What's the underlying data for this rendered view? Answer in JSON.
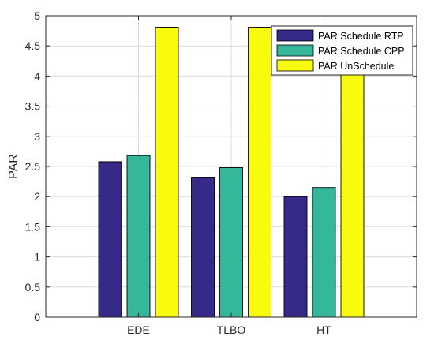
{
  "chart_data": {
    "type": "bar",
    "categories": [
      "EDE",
      "TLBO",
      "HT"
    ],
    "series": [
      {
        "name": "PAR Schedule RTP",
        "values": [
          2.58,
          2.31,
          2.0
        ],
        "color": "#352a87"
      },
      {
        "name": "PAR Schedule CPP",
        "values": [
          2.68,
          2.48,
          2.15
        ],
        "color": "#35b79c"
      },
      {
        "name": "PAR UnSchedule",
        "values": [
          4.81,
          4.81,
          4.81
        ],
        "color": "#f9fb0e"
      }
    ],
    "title": "",
    "xlabel": "",
    "ylabel": "PAR",
    "ylim": [
      0,
      5
    ],
    "yticks": [
      0,
      0.5,
      1,
      1.5,
      2,
      2.5,
      3,
      3.5,
      4,
      4.5,
      5
    ],
    "ytick_labels": [
      "0",
      "0.5",
      "1",
      "1.5",
      "2",
      "2.5",
      "3",
      "3.5",
      "4",
      "4.5",
      "5"
    ],
    "grid": true,
    "legend_position": "top-right"
  }
}
